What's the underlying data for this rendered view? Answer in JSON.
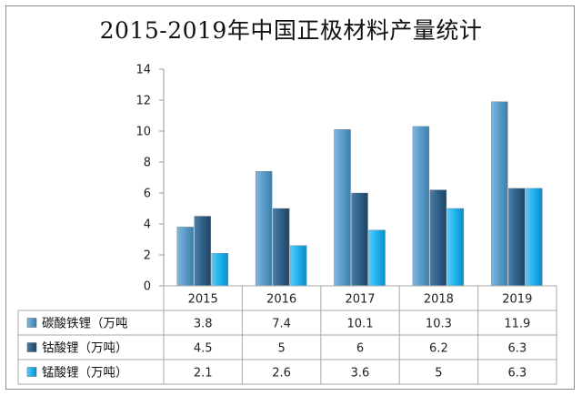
{
  "chart_data": {
    "type": "bar",
    "title": "2015-2019年中国正极材料产量统计",
    "categories": [
      "2015",
      "2016",
      "2017",
      "2018",
      "2019"
    ],
    "series": [
      {
        "name": "碳酸铁锂（万吨",
        "values": [
          3.8,
          7.4,
          10.1,
          10.3,
          11.9
        ],
        "color": "#5b9bc8"
      },
      {
        "name": "钴酸锂（万吨）",
        "values": [
          4.5,
          5,
          6,
          6.2,
          6.3
        ],
        "color": "#2f5f86"
      },
      {
        "name": "锰酸锂（万吨）",
        "values": [
          2.1,
          2.6,
          3.6,
          5,
          6.3
        ],
        "color": "#1fb0ee"
      }
    ],
    "table_values": [
      [
        "3.8",
        "7.4",
        "10.1",
        "10.3",
        "11.9"
      ],
      [
        "4.5",
        "5",
        "6",
        "6.2",
        "6.3"
      ],
      [
        "2.1",
        "2.6",
        "3.6",
        "5",
        "6.3"
      ]
    ],
    "yticks": [
      "0",
      "2",
      "4",
      "6",
      "8",
      "10",
      "12",
      "14"
    ],
    "ylim": [
      0,
      14
    ],
    "grid": false,
    "legend": "data-table-left"
  }
}
